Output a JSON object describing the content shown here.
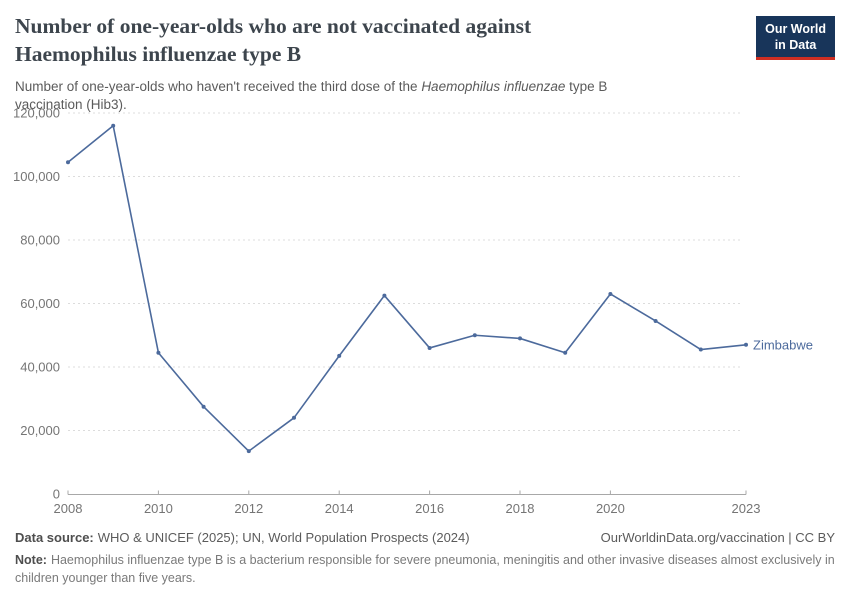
{
  "header": {
    "title_line1": "Number of one-year-olds who are not vaccinated against",
    "title_line2": "Haemophilus influenzae type B",
    "subtitle_prefix": "Number of one-year-olds who haven't received the third dose of the ",
    "subtitle_italic": "Haemophilus influenzae",
    "subtitle_suffix": " type B vaccination (Hib3)."
  },
  "logo": {
    "line1": "Our World",
    "line2": "in Data",
    "bg_color": "#18355a",
    "accent_color": "#cf2e22"
  },
  "footer": {
    "source_label": "Data source:",
    "source_text": "WHO & UNICEF (2025); UN, World Population Prospects (2024)",
    "link_text": "OurWorldinData.org/vaccination | CC BY",
    "note_label": "Note:",
    "note_text": "Haemophilus influenzae type B is a bacterium responsible for severe pneumonia, meningitis and other invasive diseases almost exclusively in children younger than five years."
  },
  "chart_data": {
    "type": "line",
    "title": "Number of one-year-olds who are not vaccinated against Haemophilus influenzae type B",
    "subtitle": "Number of one-year-olds who haven't received the third dose of the Haemophilus influenzae type B vaccination (Hib3).",
    "xlabel": "",
    "ylabel": "",
    "x": [
      2008,
      2009,
      2010,
      2011,
      2012,
      2013,
      2014,
      2015,
      2016,
      2017,
      2018,
      2019,
      2020,
      2021,
      2022,
      2023
    ],
    "series": [
      {
        "name": "Zimbabwe",
        "color": "#4C6A9C",
        "values": [
          104500,
          116000,
          44500,
          27500,
          13500,
          24000,
          43500,
          62500,
          46000,
          50000,
          49000,
          44500,
          63000,
          54500,
          45500,
          47000
        ]
      }
    ],
    "xticks": [
      2008,
      2010,
      2012,
      2014,
      2016,
      2018,
      2020,
      2023
    ],
    "yticks": [
      0,
      20000,
      40000,
      60000,
      80000,
      100000,
      120000
    ],
    "ylim": [
      0,
      120000
    ],
    "xlim": [
      2008,
      2023
    ],
    "grid": "horizontal-dashed",
    "legend": "end-of-line-label",
    "gridline_color": "#dcdcdc",
    "axis_label_color": "#757575"
  }
}
